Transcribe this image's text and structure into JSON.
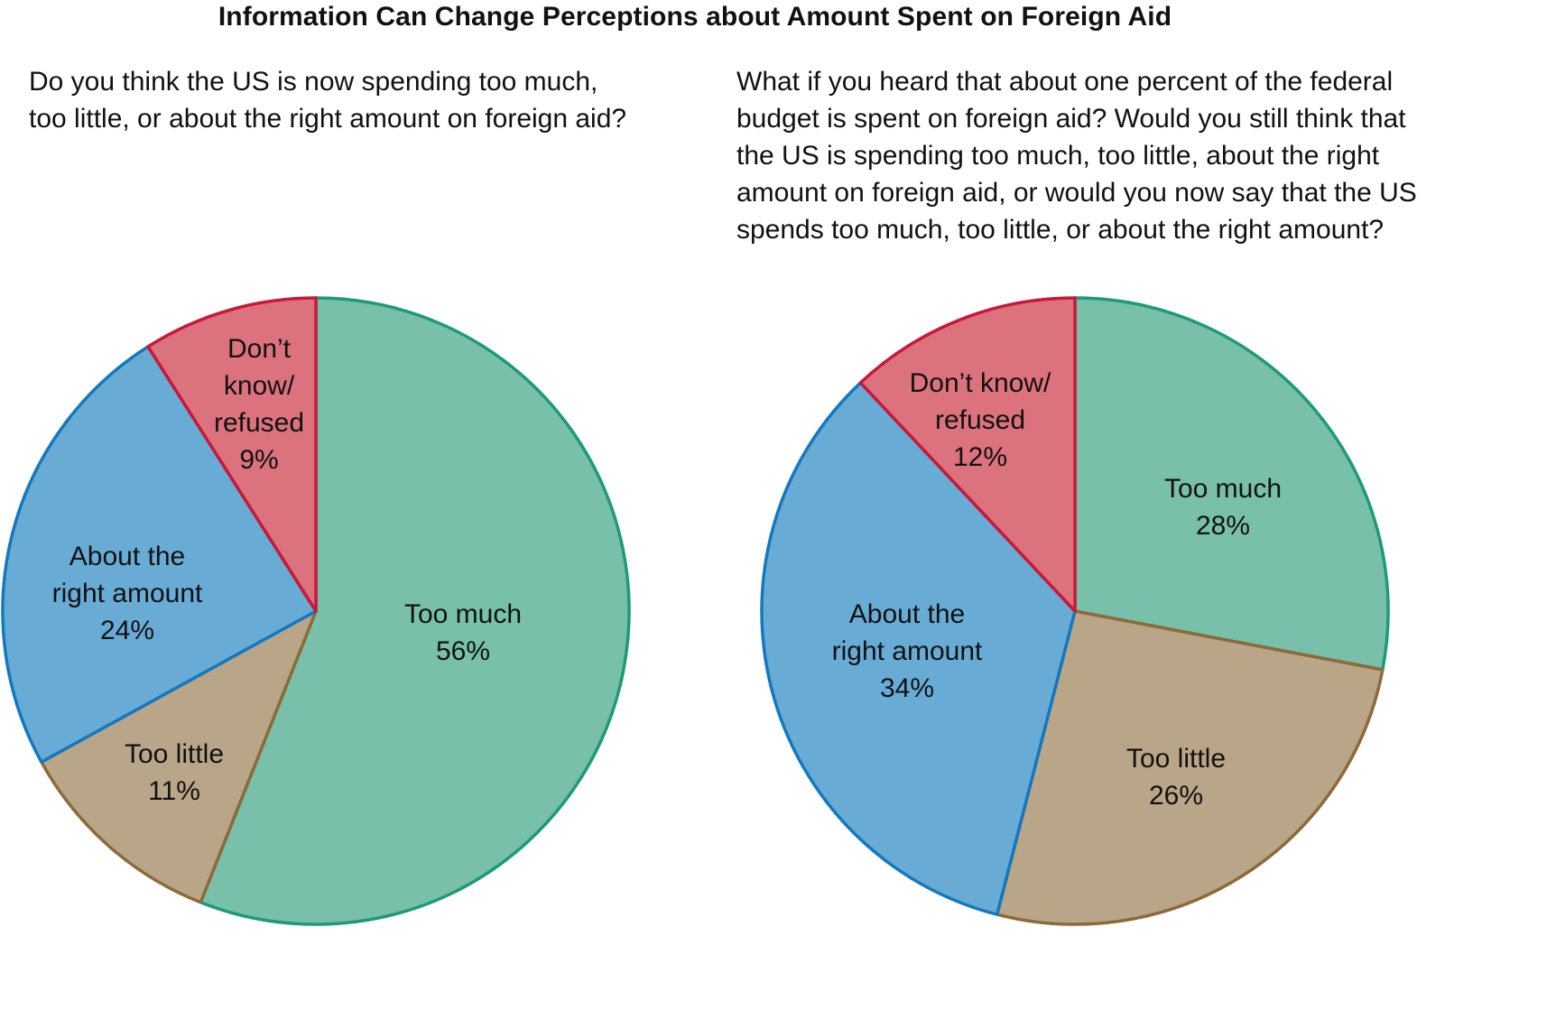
{
  "title": "Information Can Change Perceptions about Amount Spent on Foreign Aid",
  "questions": {
    "left": "Do you think the US is now spending too much, too little, or about the right amount on foreign aid?",
    "right": "What if you heard that about one percent of the federal budget is spent on foreign aid? Would you still think that the US is spending too much, too little, about the right amount on foreign aid, or would you now say that the US spends too much, too little, or about the right amount?"
  },
  "colors": {
    "too_much": {
      "fill": "#78C0AA",
      "stroke": "#1E9A78"
    },
    "too_little": {
      "fill": "#B9A588",
      "stroke": "#8C6A3A"
    },
    "about_right": {
      "fill": "#68ACD6",
      "stroke": "#1478C0"
    },
    "dont_know": {
      "fill": "#DC727D",
      "stroke": "#C8183A"
    }
  },
  "chart_data": [
    {
      "type": "pie",
      "title": "Do you think the US is now spending too much, too little, or about the right amount on foreign aid?",
      "categories": [
        "Too much",
        "Too little",
        "About the right amount",
        "Don't know/refused"
      ],
      "values": [
        56,
        11,
        24,
        9
      ],
      "unit": "%",
      "start_angle": "12 o'clock, clockwise",
      "labels": [
        {
          "lines": [
            "Too much",
            "56%"
          ]
        },
        {
          "lines": [
            "Too little",
            "11%"
          ]
        },
        {
          "lines": [
            "About the",
            "right amount",
            "24%"
          ]
        },
        {
          "lines": [
            "Don’t",
            "know/",
            "refused",
            "9%"
          ]
        }
      ]
    },
    {
      "type": "pie",
      "title": "What if you heard that about one percent of the federal budget is spent on foreign aid?",
      "categories": [
        "Too much",
        "Too little",
        "About the right amount",
        "Don't know/refused"
      ],
      "values": [
        28,
        26,
        34,
        12
      ],
      "unit": "%",
      "start_angle": "12 o'clock, clockwise",
      "labels": [
        {
          "lines": [
            "Too much",
            "28%"
          ]
        },
        {
          "lines": [
            "Too little",
            "26%"
          ]
        },
        {
          "lines": [
            "About the",
            "right amount",
            "34%"
          ]
        },
        {
          "lines": [
            "Don’t know/",
            "refused",
            "12%"
          ]
        }
      ]
    }
  ]
}
